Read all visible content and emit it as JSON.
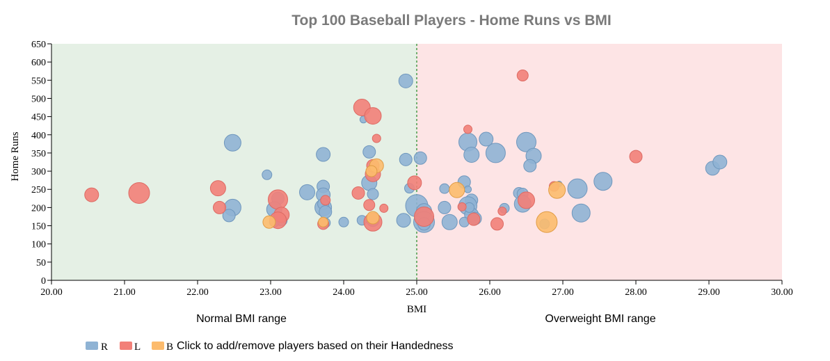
{
  "chart_data": {
    "type": "scatter",
    "title": "Top 100 Baseball Players - Home Runs vs BMI",
    "xlabel": "BMI",
    "ylabel": "Home Runs",
    "xlim": [
      20,
      30
    ],
    "ylim": [
      0,
      650
    ],
    "x_ticks": [
      "20.00",
      "21.00",
      "22.00",
      "23.00",
      "24.00",
      "25.00",
      "26.00",
      "27.00",
      "28.00",
      "29.00",
      "30.00"
    ],
    "y_ticks": [
      "0",
      "50",
      "100",
      "150",
      "200",
      "250",
      "300",
      "350",
      "400",
      "450",
      "500",
      "550",
      "600",
      "650"
    ],
    "threshold_x": 25,
    "regions": [
      {
        "label": "Normal BMI range",
        "from": 20,
        "to": 25,
        "color": "#e5f0e5"
      },
      {
        "label": "Overweight BMI range",
        "from": 25,
        "to": 30,
        "color": "#fde4e5"
      }
    ],
    "series": [
      {
        "name": "R",
        "color": "#8fb3d4",
        "stroke": "#6f97bd",
        "points": [
          [
            24.85,
            548,
            10
          ],
          [
            26.5,
            380,
            14
          ],
          [
            26.6,
            342,
            11
          ],
          [
            25.7,
            380,
            13
          ],
          [
            25.75,
            345,
            11
          ],
          [
            26.08,
            350,
            14
          ],
          [
            26.55,
            315,
            9
          ],
          [
            25.95,
            388,
            10
          ],
          [
            24.35,
            353,
            9
          ],
          [
            24.35,
            268,
            11
          ],
          [
            24.4,
            237,
            8
          ],
          [
            24.9,
            253,
            7
          ],
          [
            24.85,
            332,
            9
          ],
          [
            25.05,
            336,
            9
          ],
          [
            22.48,
            378,
            12
          ],
          [
            23.72,
            346,
            10
          ],
          [
            22.95,
            290,
            7
          ],
          [
            23.72,
            258,
            9
          ],
          [
            23.72,
            235,
            10
          ],
          [
            23.5,
            242,
            11
          ],
          [
            23.72,
            200,
            12
          ],
          [
            23.72,
            210,
            8
          ],
          [
            23.75,
            188,
            9
          ],
          [
            23.1,
            225,
            9
          ],
          [
            23.05,
            195,
            11
          ],
          [
            22.48,
            200,
            12
          ],
          [
            22.43,
            178,
            9
          ],
          [
            23.15,
            165,
            8
          ],
          [
            23.05,
            160,
            7
          ],
          [
            23.75,
            158,
            7
          ],
          [
            24.0,
            160,
            7
          ],
          [
            24.25,
            165,
            7
          ],
          [
            24.4,
            165,
            9
          ],
          [
            24.42,
            172,
            7
          ],
          [
            24.82,
            165,
            10
          ],
          [
            24.27,
            442,
            5
          ],
          [
            25.0,
            205,
            16
          ],
          [
            25.1,
            190,
            11
          ],
          [
            25.1,
            160,
            15
          ],
          [
            25.1,
            155,
            9
          ],
          [
            25.45,
            160,
            11
          ],
          [
            25.38,
            200,
            9
          ],
          [
            25.38,
            252,
            7
          ],
          [
            25.65,
            270,
            9
          ],
          [
            25.75,
            220,
            9
          ],
          [
            25.7,
            205,
            13
          ],
          [
            25.75,
            180,
            10
          ],
          [
            25.8,
            170,
            9
          ],
          [
            25.65,
            160,
            7
          ],
          [
            25.72,
            200,
            7
          ],
          [
            25.7,
            250,
            5
          ],
          [
            26.2,
            198,
            7
          ],
          [
            26.4,
            240,
            8
          ],
          [
            26.45,
            238,
            8
          ],
          [
            26.45,
            210,
            12
          ],
          [
            26.75,
            155,
            7
          ],
          [
            26.95,
            265,
            4
          ],
          [
            27.2,
            252,
            14
          ],
          [
            27.25,
            185,
            13
          ],
          [
            27.55,
            272,
            13
          ],
          [
            29.05,
            308,
            10
          ],
          [
            29.15,
            325,
            10
          ]
        ]
      },
      {
        "name": "L",
        "color": "#f28078",
        "stroke": "#dd6a63",
        "points": [
          [
            20.55,
            235,
            10
          ],
          [
            21.2,
            240,
            15
          ],
          [
            22.28,
            253,
            11
          ],
          [
            22.3,
            200,
            9
          ],
          [
            23.1,
            222,
            14
          ],
          [
            23.15,
            180,
            11
          ],
          [
            23.1,
            165,
            12
          ],
          [
            23.75,
            220,
            7
          ],
          [
            23.72,
            155,
            8
          ],
          [
            24.25,
            475,
            12
          ],
          [
            24.4,
            452,
            12
          ],
          [
            24.45,
            390,
            6
          ],
          [
            24.4,
            292,
            11
          ],
          [
            24.4,
            315,
            9
          ],
          [
            24.2,
            240,
            9
          ],
          [
            24.35,
            207,
            8
          ],
          [
            24.4,
            160,
            13
          ],
          [
            24.55,
            198,
            6
          ],
          [
            24.97,
            268,
            10
          ],
          [
            25.1,
            175,
            14
          ],
          [
            25.7,
            415,
            6
          ],
          [
            25.62,
            202,
            6
          ],
          [
            25.78,
            168,
            9
          ],
          [
            26.1,
            155,
            9
          ],
          [
            26.17,
            190,
            6
          ],
          [
            26.45,
            563,
            8
          ],
          [
            26.5,
            220,
            12
          ],
          [
            26.88,
            258,
            7
          ],
          [
            28.0,
            340,
            9
          ]
        ]
      },
      {
        "name": "B",
        "color": "#fcbb6d",
        "stroke": "#e09c45",
        "points": [
          [
            24.45,
            315,
            10
          ],
          [
            24.38,
            300,
            8
          ],
          [
            24.4,
            172,
            9
          ],
          [
            22.98,
            160,
            9
          ],
          [
            23.72,
            160,
            7
          ],
          [
            25.55,
            248,
            11
          ],
          [
            26.92,
            248,
            12
          ],
          [
            26.78,
            160,
            15
          ]
        ]
      }
    ]
  },
  "legend": {
    "items": [
      {
        "label": "R",
        "color": "#8fb3d4",
        "stroke": "#6f97bd"
      },
      {
        "label": "L",
        "color": "#f28078",
        "stroke": "#dd6a63"
      },
      {
        "label": "B",
        "color": "#fcbb6d",
        "stroke": "#e09c45"
      }
    ],
    "note": "Click to add/remove players based on their Handedness"
  }
}
